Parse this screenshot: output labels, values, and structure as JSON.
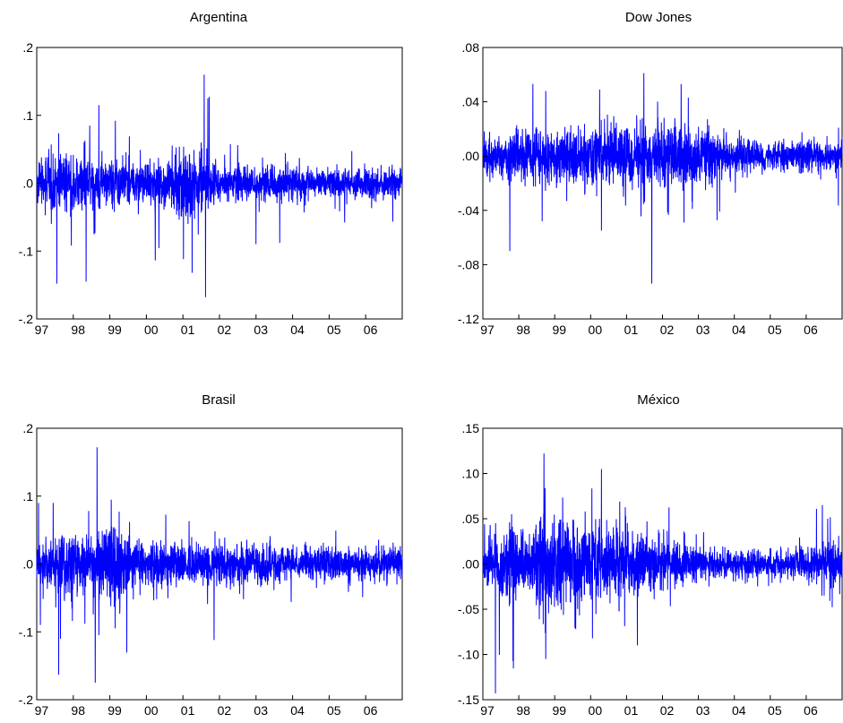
{
  "colors": {
    "series": "#0000ff",
    "axis": "#000000",
    "background": "#ffffff"
  },
  "chart_data": [
    {
      "type": "line",
      "title": "Argentina",
      "xlabel": "",
      "ylabel": "",
      "xlim": [
        1997.0,
        2007.0
      ],
      "ylim": [
        -0.2,
        0.2
      ],
      "yticks": [
        ".2",
        ".1",
        ".0",
        "-.1",
        "-.2"
      ],
      "yticks_values": [
        0.2,
        0.1,
        0.0,
        -0.1,
        -0.2
      ],
      "xticks": [
        "97",
        "98",
        "99",
        "00",
        "01",
        "02",
        "03",
        "04",
        "05",
        "06"
      ],
      "grid": false,
      "legend": "none",
      "volatility": [
        0.015,
        0.02,
        0.022,
        0.024,
        0.022,
        0.026,
        0.022,
        0.018,
        0.018,
        0.02,
        0.02,
        0.02,
        0.019,
        0.02,
        0.024,
        0.03,
        0.033,
        0.03,
        0.022,
        0.016,
        0.014,
        0.014,
        0.016,
        0.015,
        0.015,
        0.015,
        0.015,
        0.014,
        0.013,
        0.013,
        0.012,
        0.012,
        0.012,
        0.012,
        0.013,
        0.012,
        0.013,
        0.012,
        0.012,
        0.012
      ],
      "extremes": [
        {
          "x": 1997.55,
          "y": -0.148
        },
        {
          "x": 1998.35,
          "y": -0.145
        },
        {
          "x": 1998.45,
          "y": 0.085
        },
        {
          "x": 1998.7,
          "y": 0.115
        },
        {
          "x": 1999.15,
          "y": 0.092
        },
        {
          "x": 2001.25,
          "y": -0.132
        },
        {
          "x": 2001.58,
          "y": 0.16
        },
        {
          "x": 2001.62,
          "y": -0.168
        },
        {
          "x": 2001.68,
          "y": 0.125
        },
        {
          "x": 2001.72,
          "y": 0.127
        },
        {
          "x": 2003.0,
          "y": 0.088
        },
        {
          "x": 2003.0,
          "y": -0.09
        },
        {
          "x": 2003.65,
          "y": -0.088
        }
      ]
    },
    {
      "type": "line",
      "title": "Dow Jones",
      "xlabel": "",
      "ylabel": "",
      "xlim": [
        1997.0,
        2007.0
      ],
      "ylim": [
        -0.12,
        0.08
      ],
      "yticks": [
        ".08",
        ".04",
        ".00",
        "-.04",
        "-.08",
        "-.12"
      ],
      "yticks_values": [
        0.08,
        0.04,
        0.0,
        -0.04,
        -0.08,
        -0.12
      ],
      "xticks": [
        "97",
        "98",
        "99",
        "00",
        "01",
        "02",
        "03",
        "04",
        "05",
        "06"
      ],
      "grid": false,
      "legend": "none",
      "volatility": [
        0.008,
        0.009,
        0.009,
        0.01,
        0.011,
        0.012,
        0.012,
        0.011,
        0.011,
        0.011,
        0.011,
        0.011,
        0.012,
        0.012,
        0.012,
        0.012,
        0.013,
        0.012,
        0.012,
        0.013,
        0.013,
        0.014,
        0.014,
        0.013,
        0.012,
        0.011,
        0.01,
        0.008,
        0.007,
        0.007,
        0.006,
        0.006,
        0.006,
        0.006,
        0.006,
        0.006,
        0.006,
        0.006,
        0.006,
        0.007
      ],
      "extremes": [
        {
          "x": 1997.75,
          "y": -0.07
        },
        {
          "x": 1998.65,
          "y": -0.048
        },
        {
          "x": 1998.75,
          "y": 0.048
        },
        {
          "x": 2000.25,
          "y": 0.049
        },
        {
          "x": 2000.3,
          "y": -0.055
        },
        {
          "x": 2001.7,
          "y": -0.094
        },
        {
          "x": 2002.52,
          "y": 0.053
        },
        {
          "x": 2002.72,
          "y": 0.043
        },
        {
          "x": 2002.6,
          "y": -0.049
        }
      ]
    },
    {
      "type": "line",
      "title": "Brasil",
      "xlabel": "",
      "ylabel": "",
      "xlim": [
        1997.0,
        2007.0
      ],
      "ylim": [
        -0.2,
        0.2
      ],
      "yticks": [
        ".2",
        ".1",
        ".0",
        "-.1",
        "-.2"
      ],
      "yticks_values": [
        0.2,
        0.1,
        0.0,
        -0.1,
        -0.2
      ],
      "xticks": [
        "97",
        "98",
        "99",
        "00",
        "01",
        "02",
        "03",
        "04",
        "05",
        "06"
      ],
      "grid": false,
      "legend": "none",
      "volatility": [
        0.02,
        0.018,
        0.026,
        0.032,
        0.024,
        0.022,
        0.022,
        0.028,
        0.04,
        0.03,
        0.022,
        0.02,
        0.018,
        0.018,
        0.018,
        0.017,
        0.018,
        0.018,
        0.018,
        0.017,
        0.016,
        0.016,
        0.017,
        0.017,
        0.017,
        0.016,
        0.015,
        0.015,
        0.014,
        0.014,
        0.015,
        0.015,
        0.015,
        0.014,
        0.014,
        0.014,
        0.015,
        0.015,
        0.015,
        0.015
      ],
      "extremes": [
        {
          "x": 1997.05,
          "y": 0.09
        },
        {
          "x": 1997.1,
          "y": -0.09
        },
        {
          "x": 1997.45,
          "y": 0.09
        },
        {
          "x": 1997.6,
          "y": -0.163
        },
        {
          "x": 1997.65,
          "y": -0.11
        },
        {
          "x": 1998.6,
          "y": 0.125
        },
        {
          "x": 1998.65,
          "y": 0.172
        },
        {
          "x": 1998.6,
          "y": -0.175
        },
        {
          "x": 1998.7,
          "y": -0.105
        },
        {
          "x": 2001.85,
          "y": 0.088
        },
        {
          "x": 2001.85,
          "y": -0.112
        }
      ]
    },
    {
      "type": "line",
      "title": "México",
      "xlabel": "",
      "ylabel": "",
      "xlim": [
        1997.0,
        2007.0
      ],
      "ylim": [
        -0.15,
        0.15
      ],
      "yticks": [
        ".15",
        ".10",
        ".05",
        ".00",
        "-.05",
        "-.10",
        "-.15"
      ],
      "yticks_values": [
        0.15,
        0.1,
        0.05,
        0.0,
        -0.05,
        -0.1,
        -0.15
      ],
      "xticks": [
        "97",
        "98",
        "99",
        "00",
        "01",
        "02",
        "03",
        "04",
        "05",
        "06"
      ],
      "grid": false,
      "legend": "none",
      "volatility": [
        0.015,
        0.015,
        0.02,
        0.026,
        0.02,
        0.018,
        0.026,
        0.032,
        0.03,
        0.028,
        0.024,
        0.022,
        0.022,
        0.02,
        0.022,
        0.022,
        0.022,
        0.02,
        0.018,
        0.016,
        0.015,
        0.014,
        0.013,
        0.012,
        0.01,
        0.01,
        0.009,
        0.009,
        0.009,
        0.009,
        0.008,
        0.008,
        0.008,
        0.008,
        0.009,
        0.009,
        0.01,
        0.013,
        0.015,
        0.012
      ],
      "extremes": [
        {
          "x": 1997.35,
          "y": 0.11
        },
        {
          "x": 1997.35,
          "y": -0.143
        },
        {
          "x": 1997.8,
          "y": 0.055
        },
        {
          "x": 1998.7,
          "y": 0.122
        },
        {
          "x": 1998.75,
          "y": 0.095
        },
        {
          "x": 1998.75,
          "y": -0.105
        },
        {
          "x": 2000.3,
          "y": 0.105
        },
        {
          "x": 2000.05,
          "y": -0.082
        },
        {
          "x": 2001.3,
          "y": -0.09
        },
        {
          "x": 2006.45,
          "y": 0.065
        },
        {
          "x": 2006.6,
          "y": 0.05
        },
        {
          "x": 2006.5,
          "y": -0.035
        }
      ]
    }
  ]
}
